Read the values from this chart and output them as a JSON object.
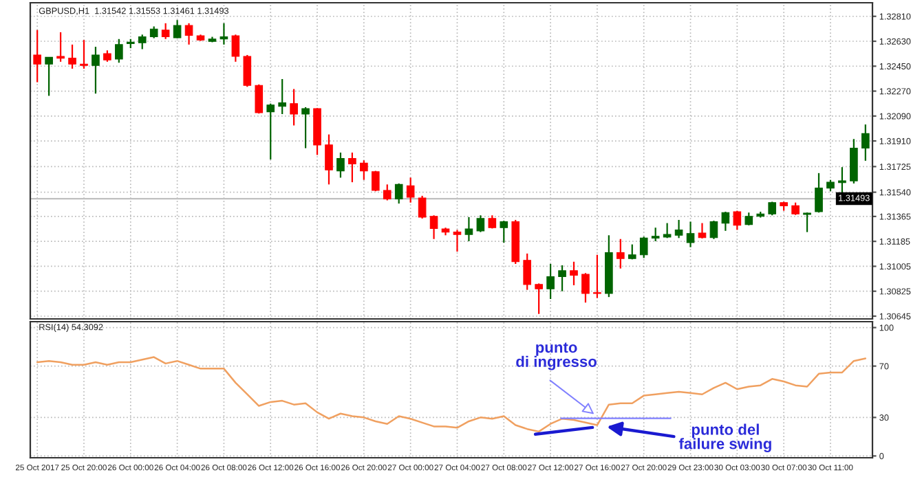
{
  "chart_data": [
    {
      "type": "candlestick",
      "title": "GBPUSD,H1  1.31542 1.31553 1.31461 1.31493",
      "categories": [
        null,
        null,
        null,
        null,
        null,
        null,
        null,
        null,
        null,
        null,
        null,
        null,
        null,
        null,
        null,
        null,
        null,
        null,
        null,
        null,
        null,
        null,
        null,
        null,
        null,
        null,
        null,
        null,
        null,
        null,
        null,
        null,
        null,
        null,
        null,
        null,
        null,
        null,
        null,
        null,
        null,
        null,
        null,
        null,
        null,
        null,
        null,
        null,
        null,
        null,
        null,
        null,
        null,
        null,
        null,
        null,
        null,
        null,
        null,
        null,
        null,
        null,
        null,
        null,
        null,
        null,
        null,
        null,
        null,
        null,
        null,
        null
      ],
      "ohlc": [
        [
          1.32531,
          1.32711,
          1.32334,
          1.32465
        ],
        [
          1.32465,
          1.32514,
          1.32236,
          1.32514
        ],
        [
          1.32521,
          1.32695,
          1.32482,
          1.32508
        ],
        [
          1.32508,
          1.32606,
          1.32432,
          1.32465
        ],
        [
          1.32465,
          1.32639,
          1.32432,
          1.32455
        ],
        [
          1.32455,
          1.3259,
          1.32252,
          1.32531
        ],
        [
          1.32541,
          1.32564,
          1.32482,
          1.32495
        ],
        [
          1.32501,
          1.32646,
          1.32475,
          1.32606
        ],
        [
          1.32613,
          1.32646,
          1.3258,
          1.32623
        ],
        [
          1.32619,
          1.32678,
          1.32573,
          1.32662
        ],
        [
          1.32662,
          1.32737,
          1.32652,
          1.32718
        ],
        [
          1.32711,
          1.3276,
          1.32646,
          1.32662
        ],
        [
          1.32655,
          1.32783,
          1.32652,
          1.32744
        ],
        [
          1.32744,
          1.3276,
          1.32606,
          1.32672
        ],
        [
          1.32669,
          1.32678,
          1.32632,
          1.32639
        ],
        [
          1.32629,
          1.32662,
          1.32623,
          1.32646
        ],
        [
          1.32646,
          1.3276,
          1.32606,
          1.32662
        ],
        [
          1.32669,
          1.32678,
          1.32482,
          1.32521
        ],
        [
          1.32521,
          1.32531,
          1.32301,
          1.32311
        ],
        [
          1.32311,
          1.32318,
          1.32108,
          1.32114
        ],
        [
          1.32121,
          1.3218,
          1.31776,
          1.3217
        ],
        [
          1.3216,
          1.32357,
          1.32104,
          1.32186
        ],
        [
          1.3218,
          1.32285,
          1.32022,
          1.32104
        ],
        [
          1.32104,
          1.32154,
          1.31858,
          1.32144
        ],
        [
          1.32144,
          1.32147,
          1.31809,
          1.31881
        ],
        [
          1.31881,
          1.31957,
          1.31596,
          1.31701
        ],
        [
          1.31694,
          1.31826,
          1.31645,
          1.31783
        ],
        [
          1.31783,
          1.31826,
          1.31612,
          1.31744
        ],
        [
          1.3175,
          1.3177,
          1.31629,
          1.31694
        ],
        [
          1.31688,
          1.31694,
          1.31547,
          1.31553
        ],
        [
          1.31553,
          1.31596,
          1.31481,
          1.31491
        ],
        [
          1.31491,
          1.31603,
          1.31458,
          1.31596
        ],
        [
          1.31586,
          1.31645,
          1.31465,
          1.31504
        ],
        [
          1.31498,
          1.31514,
          1.3135,
          1.3136
        ],
        [
          1.31366,
          1.31373,
          1.31202,
          1.31278
        ],
        [
          1.31275,
          1.31284,
          1.31229,
          1.31252
        ],
        [
          1.31252,
          1.31268,
          1.31111,
          1.31235
        ],
        [
          1.31235,
          1.3136,
          1.31186,
          1.31275
        ],
        [
          1.31261,
          1.31373,
          1.31252,
          1.3135
        ],
        [
          1.3135,
          1.31373,
          1.31278,
          1.31284
        ],
        [
          1.31284,
          1.31334,
          1.31176,
          1.31327
        ],
        [
          1.31327,
          1.3134,
          1.31022,
          1.31038
        ],
        [
          1.31048,
          1.31097,
          1.30835,
          1.30874
        ],
        [
          1.30874,
          1.30881,
          1.30661,
          1.30842
        ],
        [
          1.30842,
          1.31022,
          1.30769,
          1.3093
        ],
        [
          1.3093,
          1.31012,
          1.30825,
          1.30973
        ],
        [
          1.30973,
          1.31038,
          1.30868,
          1.3094
        ],
        [
          1.30947,
          1.30956,
          1.30743,
          1.30809
        ],
        [
          1.30815,
          1.31088,
          1.30776,
          1.30809
        ],
        [
          1.30809,
          1.31229,
          1.30783,
          1.31104
        ],
        [
          1.31104,
          1.31202,
          1.30989,
          1.31061
        ],
        [
          1.31061,
          1.31163,
          1.31055,
          1.31088
        ],
        [
          1.31088,
          1.31219,
          1.31065,
          1.31209
        ],
        [
          1.31209,
          1.31284,
          1.31186,
          1.31222
        ],
        [
          1.31216,
          1.31317,
          1.31209,
          1.31235
        ],
        [
          1.31229,
          1.3134,
          1.31209,
          1.31268
        ],
        [
          1.31176,
          1.31327,
          1.31143,
          1.31242
        ],
        [
          1.31245,
          1.31317,
          1.31206,
          1.31212
        ],
        [
          1.31212,
          1.31334,
          1.31202,
          1.31327
        ],
        [
          1.31317,
          1.31399,
          1.31261,
          1.31393
        ],
        [
          1.31399,
          1.31406,
          1.31268,
          1.31301
        ],
        [
          1.31307,
          1.31393,
          1.31301,
          1.31366
        ],
        [
          1.31366,
          1.31399,
          1.31357,
          1.31383
        ],
        [
          1.31383,
          1.31471,
          1.31373,
          1.31465
        ],
        [
          1.31465,
          1.31471,
          1.31406,
          1.31442
        ],
        [
          1.31442,
          1.31465,
          1.31376,
          1.31383
        ],
        [
          1.3138,
          1.31393,
          1.31252,
          1.31389
        ],
        [
          1.31399,
          1.31678,
          1.31393,
          1.3157
        ],
        [
          1.3157,
          1.31629,
          1.31547,
          1.31612
        ],
        [
          1.31609,
          1.31721,
          1.3153,
          1.31622
        ],
        [
          1.31622,
          1.31924,
          1.31603,
          1.31858
        ],
        [
          1.31858,
          1.32029,
          1.31767,
          1.31963
        ]
      ],
      "colors": [
        "#ff0000",
        "#006400",
        "#ff0000",
        "#ff0000",
        "#ff0000",
        "#006400",
        "#ff0000",
        "#006400",
        "#006400",
        "#006400",
        "#006400",
        "#ff0000",
        "#006400",
        "#ff0000",
        "#ff0000",
        "#006400",
        "#006400",
        "#ff0000",
        "#ff0000",
        "#ff0000",
        "#006400",
        "#006400",
        "#ff0000",
        "#006400",
        "#ff0000",
        "#ff0000",
        "#006400",
        "#ff0000",
        "#ff0000",
        "#ff0000",
        "#ff0000",
        "#006400",
        "#ff0000",
        "#ff0000",
        "#ff0000",
        "#ff0000",
        "#ff0000",
        "#006400",
        "#006400",
        "#ff0000",
        "#006400",
        "#ff0000",
        "#ff0000",
        "#ff0000",
        "#006400",
        "#006400",
        "#ff0000",
        "#ff0000",
        "#ff0000",
        "#006400",
        "#ff0000",
        "#006400",
        "#006400",
        "#006400",
        "#006400",
        "#006400",
        "#006400",
        "#ff0000",
        "#006400",
        "#006400",
        "#ff0000",
        "#006400",
        "#006400",
        "#006400",
        "#ff0000",
        "#ff0000",
        "#006400",
        "#006400",
        "#006400",
        "#006400",
        "#006400",
        "#006400"
      ],
      "ylim": [
        1.30625,
        1.32908
      ],
      "yticks": [
        {
          "value": 1.3281,
          "label": "1.32810"
        },
        {
          "value": 1.3263,
          "label": "1.32630"
        },
        {
          "value": 1.3245,
          "label": "1.32450"
        },
        {
          "value": 1.3227,
          "label": "1.32270"
        },
        {
          "value": 1.3209,
          "label": "1.32090"
        },
        {
          "value": 1.3191,
          "label": "1.31910"
        },
        {
          "value": 1.31725,
          "label": "1.31725"
        },
        {
          "value": 1.3154,
          "label": "1.31540"
        },
        {
          "value": 1.31365,
          "label": "1.31365"
        },
        {
          "value": 1.31185,
          "label": "1.31185"
        },
        {
          "value": 1.31005,
          "label": "1.31005"
        },
        {
          "value": 1.30825,
          "label": "1.30825"
        },
        {
          "value": 1.30645,
          "label": "1.30645"
        }
      ],
      "ref_lines": [
        {
          "axis": "y",
          "value": 1.31493,
          "label": "1.31493",
          "color": "#c0c0c0"
        }
      ],
      "grid": true,
      "tick_labels": "y"
    },
    {
      "type": "line",
      "title": "RSI(14) 54.3092",
      "categories": [
        "25 Oct 2017",
        null,
        null,
        null,
        "25 Oct 20:00",
        null,
        null,
        null,
        "26 Oct 00:00",
        null,
        null,
        null,
        "26 Oct 04:00",
        null,
        null,
        null,
        "26 Oct 08:00",
        null,
        null,
        null,
        "26 Oct 12:00",
        null,
        null,
        null,
        "26 Oct 16:00",
        null,
        null,
        null,
        "26 Oct 20:00",
        null,
        null,
        null,
        "27 Oct 00:00",
        null,
        null,
        null,
        "27 Oct 04:00",
        null,
        null,
        null,
        "27 Oct 08:00",
        null,
        null,
        null,
        "27 Oct 12:00",
        null,
        null,
        null,
        "27 Oct 16:00",
        null,
        null,
        null,
        "27 Oct 20:00",
        null,
        null,
        null,
        "29 Oct 23:00",
        null,
        null,
        null,
        "30 Oct 03:00",
        null,
        null,
        null,
        "30 Oct 07:00",
        null,
        null,
        null,
        "30 Oct 11:00",
        null,
        null,
        null
      ],
      "series": [
        {
          "color": "#f0a060",
          "values": [
            73,
            74,
            73,
            71,
            71,
            73,
            71,
            73,
            73,
            75,
            77,
            72,
            74,
            71,
            68,
            68,
            68,
            57,
            48,
            39,
            42,
            43,
            40,
            41,
            34,
            29,
            33,
            31,
            30,
            27,
            25,
            31,
            29,
            26,
            23,
            23,
            22,
            27,
            30,
            29,
            31,
            24,
            21,
            19,
            25,
            29,
            28,
            26,
            24,
            40,
            41,
            41,
            47,
            48,
            49,
            50,
            49,
            48,
            53,
            57,
            52,
            54,
            55,
            60,
            58,
            55,
            54,
            64,
            65,
            65,
            74,
            76
          ]
        }
      ],
      "ylim": [
        -1.4,
        104.6
      ],
      "yticks": [
        100,
        70,
        30,
        0
      ],
      "grid": true,
      "marker": "none",
      "line_style": "solid",
      "annotations": [
        "punto\ndi ingresso",
        "punto del\nfailure swing"
      ]
    }
  ]
}
